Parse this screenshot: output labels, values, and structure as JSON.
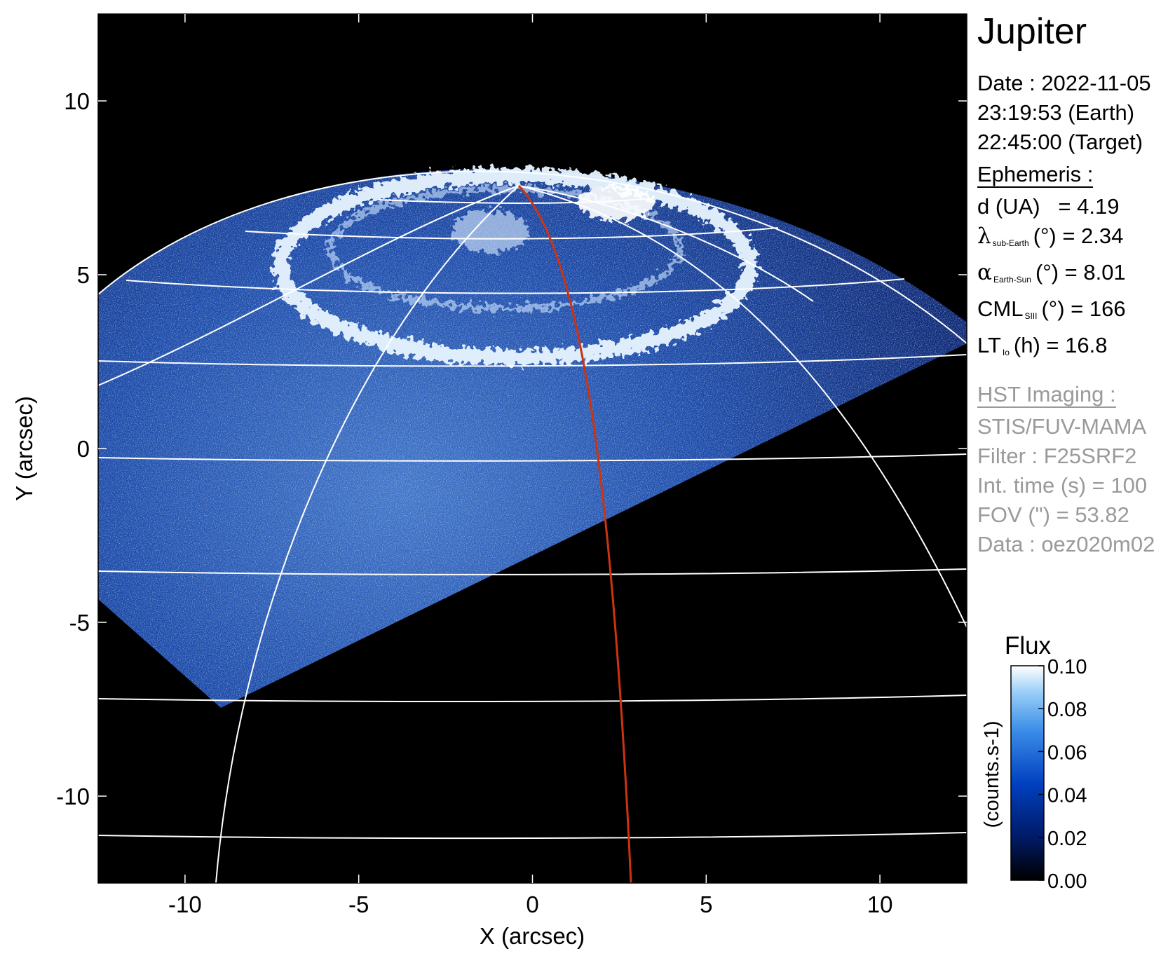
{
  "chart_data": {
    "type": "heatmap",
    "title": "Jupiter",
    "xlabel": "X (arcsec)",
    "ylabel": "Y (arcsec)",
    "xlim": [
      -12.5,
      12.5
    ],
    "ylim": [
      -12.5,
      12.5
    ],
    "xticks": [
      -10,
      -5,
      0,
      5,
      10
    ],
    "yticks": [
      -10,
      -5,
      0,
      5,
      10
    ],
    "colorbar": {
      "title": "Flux",
      "label": "(counts.s-1)",
      "ticks": [
        "0.00",
        "0.02",
        "0.04",
        "0.06",
        "0.08",
        "0.10"
      ],
      "range": [
        0.0,
        0.1
      ]
    },
    "colormap": [
      "#000000",
      "#001a66",
      "#0040c0",
      "#3b8ee8",
      "#9cd0f8",
      "#ffffff"
    ],
    "grid_color": "#ffffff",
    "meridian_color": "#cc3311"
  },
  "side": {
    "title": "Jupiter",
    "date_line": "Date : 2022-11-05",
    "earth_time": "23:19:53 (Earth)",
    "target_time": "22:45:00 (Target)",
    "ephemeris_header": "Ephemeris :",
    "eph": {
      "d_label": "d (UA)",
      "d_value": "= 4.19",
      "lat_sym": "λ",
      "lat_sub": "sub-Earth",
      "lat_value": "(°) = 2.34",
      "alpha_sym": "α",
      "alpha_sub": "Earth-Sun",
      "alpha_value": "(°) = 8.01",
      "cml_main": "CML",
      "cml_sub": "SIII",
      "cml_value": "(°) = 166",
      "lt_main": "LT",
      "lt_sub": "Io",
      "lt_value": "(h) = 16.8"
    },
    "hst_header": "HST Imaging :",
    "hst": {
      "instrument": "STIS/FUV-MAMA",
      "filter": "Filter : F25SRF2",
      "int_time": "Int. time (s) = 100",
      "fov": "FOV (\") = 53.82",
      "data": "Data : oez020m02"
    }
  }
}
